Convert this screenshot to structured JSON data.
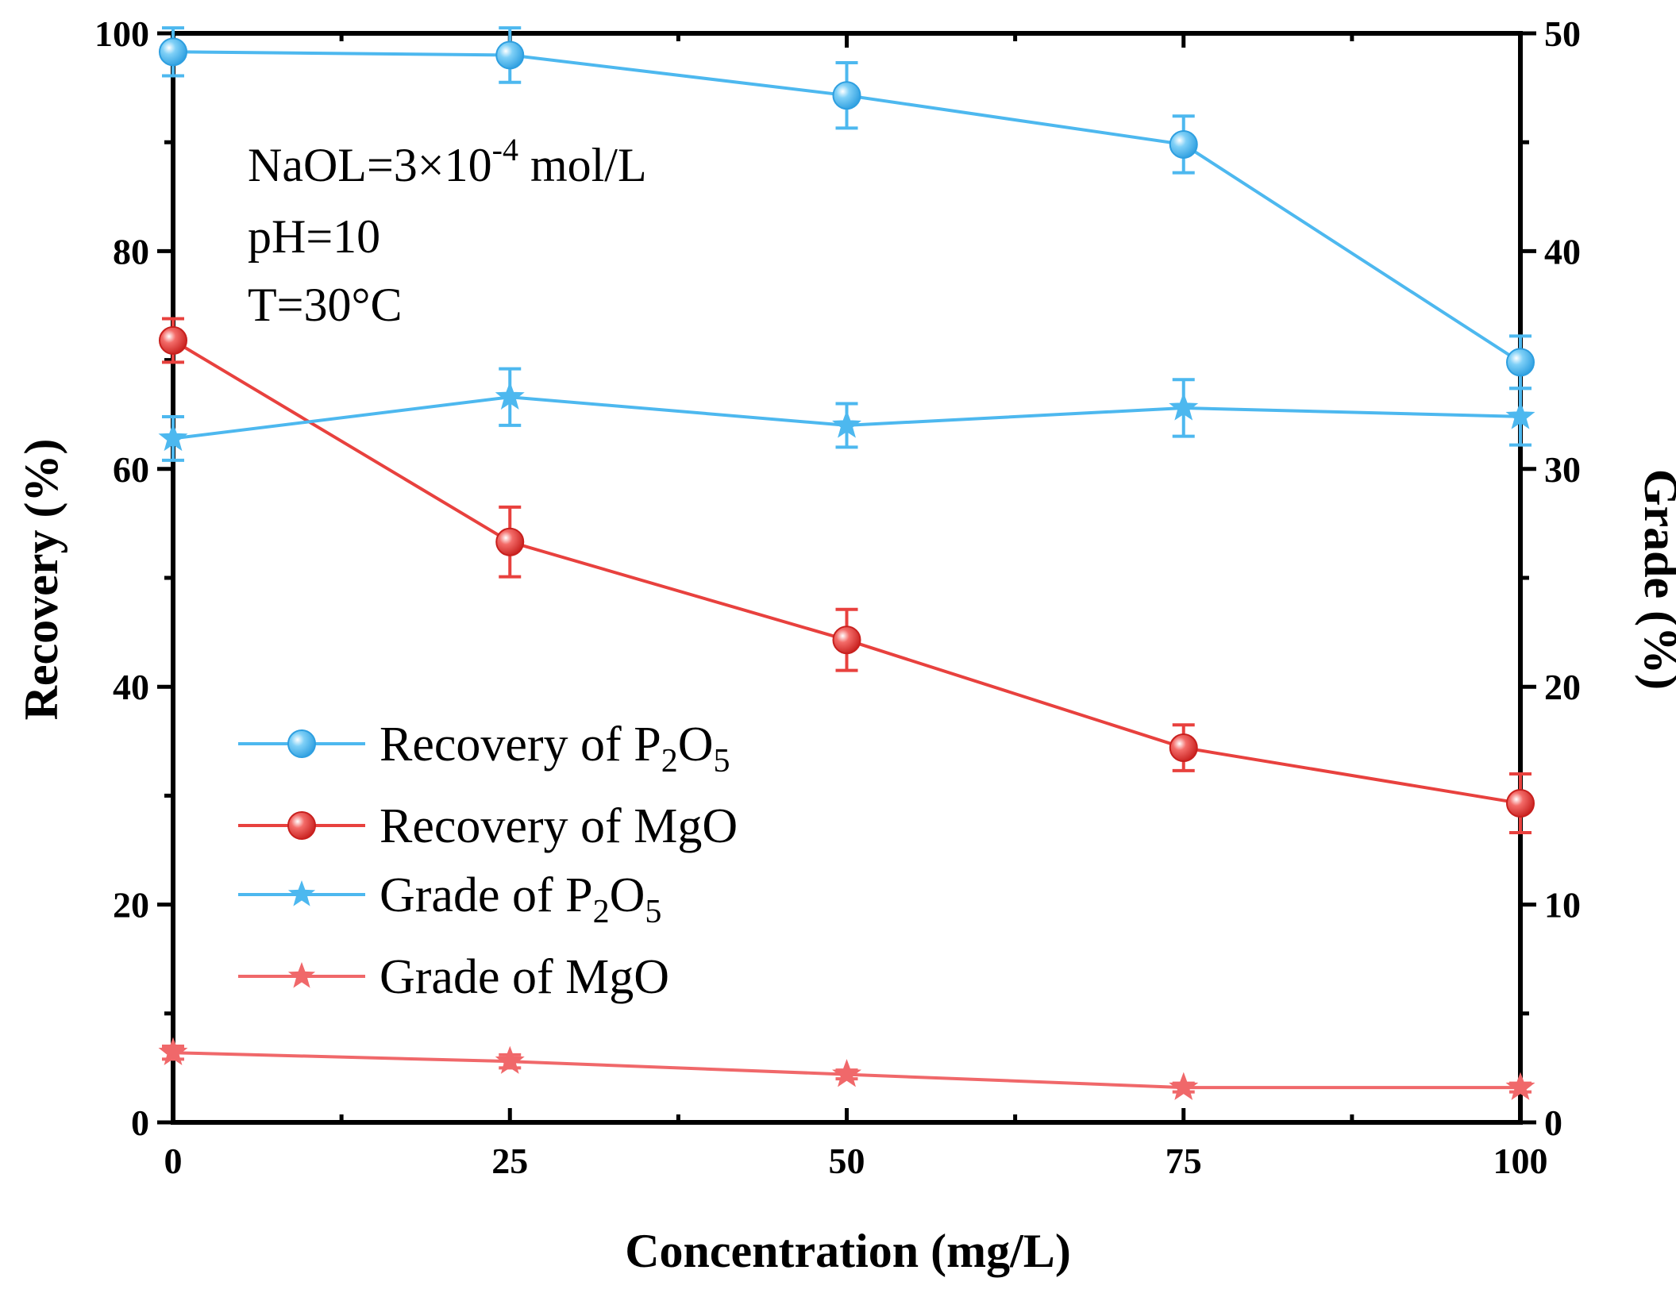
{
  "chart_data": {
    "type": "line",
    "x": [
      0,
      25,
      50,
      75,
      100
    ],
    "xlabel": "Concentration (mg/L)",
    "ylabel_left": "Recovery (%)",
    "ylabel_right": "Grade (%)",
    "xlim": [
      0,
      100
    ],
    "ylim_left": [
      0,
      100
    ],
    "ylim_right": [
      0,
      50
    ],
    "x_ticks": [
      "0",
      "25",
      "50",
      "75",
      "100"
    ],
    "y_left_ticks": [
      "0",
      "20",
      "40",
      "60",
      "80",
      "100"
    ],
    "y_right_ticks": [
      "0",
      "10",
      "20",
      "30",
      "40",
      "50"
    ],
    "annotations": {
      "line1_prefix": "NaOL=3×10",
      "line1_sup": "-4",
      "line1_suffix": " mol/L",
      "line2": "pH=10",
      "line3": "T=30°C"
    },
    "series": [
      {
        "name": "Recovery of P2O5",
        "label_main": "Recovery of P",
        "label_sub1": "2",
        "label_mid": "O",
        "label_sub2": "5",
        "axis": "left",
        "marker": "circle",
        "color": "#4db8ef",
        "values": [
          98.3,
          98.0,
          94.3,
          89.8,
          69.8
        ],
        "errors": [
          2.2,
          2.5,
          3.0,
          2.6,
          2.4
        ]
      },
      {
        "name": "Recovery of MgO",
        "label_main": "Recovery of MgO",
        "axis": "left",
        "marker": "circle",
        "color": "#e8413e",
        "values": [
          71.8,
          53.3,
          44.3,
          34.4,
          29.3
        ],
        "errors": [
          2.0,
          3.2,
          2.8,
          2.1,
          2.7
        ]
      },
      {
        "name": "Grade of P2O5",
        "label_main": "Grade of P",
        "label_sub1": "2",
        "label_mid": "O",
        "label_sub2": "5",
        "axis": "right",
        "marker": "star",
        "color": "#4db8ef",
        "values": [
          31.4,
          33.3,
          32.0,
          32.8,
          32.4
        ],
        "errors": [
          1.0,
          1.3,
          1.0,
          1.3,
          1.3
        ]
      },
      {
        "name": "Grade of MgO",
        "label_main": "Grade of MgO",
        "axis": "right",
        "marker": "star",
        "color": "#f0686a",
        "values": [
          3.2,
          2.8,
          2.2,
          1.6,
          1.6
        ],
        "errors": [
          0.3,
          0.3,
          0.2,
          0.2,
          0.2
        ]
      }
    ]
  }
}
